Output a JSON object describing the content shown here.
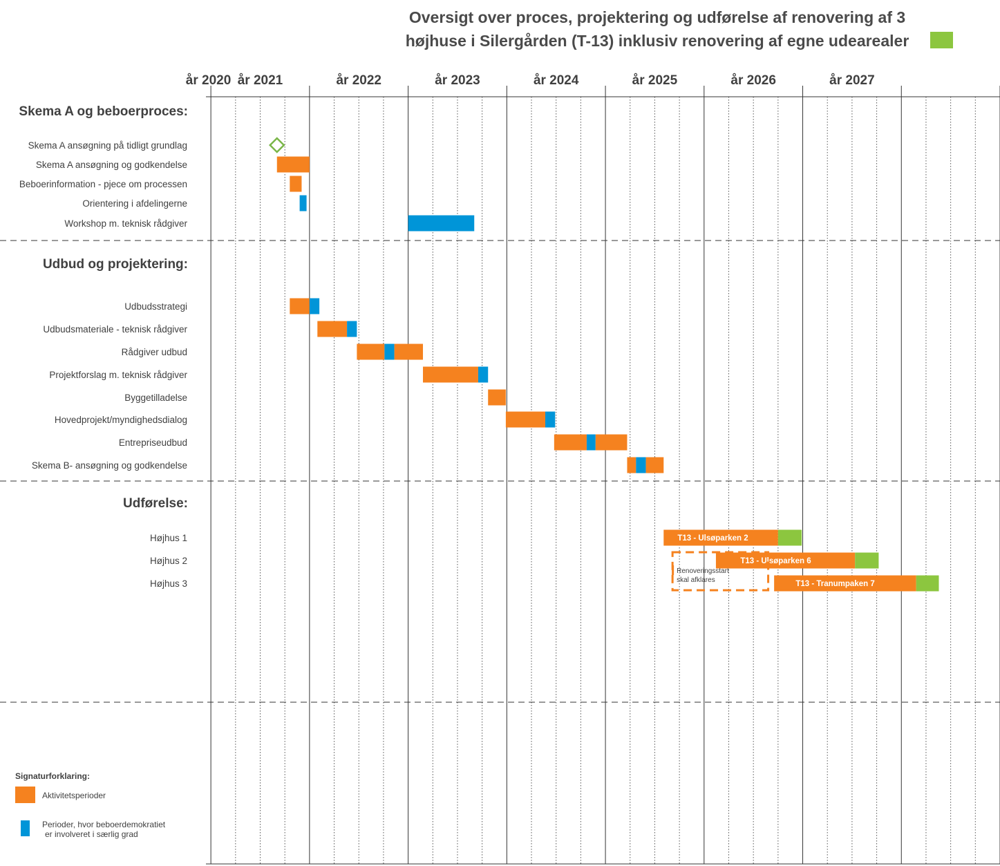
{
  "title_lines": [
    "Oversigt over proces, projektering og udførelse af renovering af 3",
    "højhuse i Silergården (T-13) inklusiv renovering af egne udearealer"
  ],
  "colors": {
    "activity": "#f5821f",
    "resident": "#0095d8",
    "outdoor": "#8cc63f",
    "milestone": "#7ab648"
  },
  "chart_data": {
    "type": "gantt",
    "x_range": [
      2019.7,
      2027.75
    ],
    "years": [
      "år 2020",
      "år 2021",
      "år 2022",
      "år 2023",
      "år 2024",
      "år 2025",
      "år 2026",
      "år 2027"
    ],
    "sections": [
      {
        "label": "Skema A  og beboerproces:",
        "rows": [
          {
            "label": "Skema A ansøgning på tidligt grundlag",
            "milestone": 2020.42,
            "segments": []
          },
          {
            "label": "Skema A ansøgning og godkendelse",
            "segments": [
              {
                "start": 2020.42,
                "end": 2020.75,
                "kind": "activity"
              }
            ]
          },
          {
            "label": "Beboerinformation - pjece om processen",
            "segments": [
              {
                "start": 2020.55,
                "end": 2020.67,
                "kind": "activity"
              }
            ]
          },
          {
            "label": "Orientering i afdelingerne",
            "segments": [
              {
                "start": 2020.65,
                "end": 2020.72,
                "kind": "resident"
              }
            ]
          },
          {
            "label": "Workshop m. teknisk rådgiver",
            "segments": [
              {
                "start": 2021.75,
                "end": 2022.42,
                "kind": "resident"
              }
            ]
          }
        ]
      },
      {
        "label": "Udbud og projektering:",
        "rows": [
          {
            "label": "Udbudsstrategi",
            "segments": [
              {
                "start": 2020.55,
                "end": 2020.75,
                "kind": "activity"
              },
              {
                "start": 2020.75,
                "end": 2020.85,
                "kind": "resident"
              }
            ]
          },
          {
            "label": "Udbudsmateriale - teknisk rådgiver",
            "segments": [
              {
                "start": 2020.83,
                "end": 2021.13,
                "kind": "activity"
              },
              {
                "start": 2021.13,
                "end": 2021.23,
                "kind": "resident"
              }
            ]
          },
          {
            "label": "Rådgiver udbud",
            "segments": [
              {
                "start": 2021.23,
                "end": 2021.51,
                "kind": "activity"
              },
              {
                "start": 2021.51,
                "end": 2021.61,
                "kind": "resident"
              },
              {
                "start": 2021.61,
                "end": 2021.9,
                "kind": "activity"
              }
            ]
          },
          {
            "label": "Projektforslag m. teknisk rådgiver",
            "segments": [
              {
                "start": 2021.9,
                "end": 2022.46,
                "kind": "activity"
              },
              {
                "start": 2022.46,
                "end": 2022.56,
                "kind": "resident"
              }
            ]
          },
          {
            "label": "Byggetilladelse",
            "segments": [
              {
                "start": 2022.56,
                "end": 2022.74,
                "kind": "activity"
              }
            ]
          },
          {
            "label": "Hovedprojekt/myndighedsdialog",
            "segments": [
              {
                "start": 2022.74,
                "end": 2023.14,
                "kind": "activity"
              },
              {
                "start": 2023.14,
                "end": 2023.24,
                "kind": "resident"
              }
            ]
          },
          {
            "label": "Entrepriseudbud",
            "segments": [
              {
                "start": 2023.23,
                "end": 2023.56,
                "kind": "activity"
              },
              {
                "start": 2023.56,
                "end": 2023.65,
                "kind": "resident"
              },
              {
                "start": 2023.65,
                "end": 2023.97,
                "kind": "activity"
              }
            ]
          },
          {
            "label": "Skema B- ansøgning og godkendelse",
            "segments": [
              {
                "start": 2023.97,
                "end": 2024.06,
                "kind": "activity"
              },
              {
                "start": 2024.06,
                "end": 2024.16,
                "kind": "resident"
              },
              {
                "start": 2024.16,
                "end": 2024.34,
                "kind": "activity"
              }
            ]
          }
        ]
      },
      {
        "label": "Udførelse:",
        "rows": [
          {
            "label": "Højhus 1",
            "segments": [
              {
                "start": 2024.34,
                "end": 2025.5,
                "kind": "activity",
                "label": "T13 - Ulsøparken 2"
              },
              {
                "start": 2025.5,
                "end": 2025.74,
                "kind": "outdoor"
              }
            ]
          },
          {
            "label": "Højhus 2",
            "segments": [
              {
                "start": 2024.87,
                "end": 2026.28,
                "kind": "activity",
                "label": "T13 - Ulsøparken 6"
              },
              {
                "start": 2026.28,
                "end": 2026.52,
                "kind": "outdoor"
              }
            ]
          },
          {
            "label": "Højhus 3",
            "segments": [
              {
                "start": 2025.46,
                "end": 2026.9,
                "kind": "activity",
                "label": "T13 - Tranumpaken 7"
              },
              {
                "start": 2026.9,
                "end": 2027.13,
                "kind": "outdoor"
              }
            ]
          }
        ]
      }
    ],
    "annotation": {
      "lines": [
        "Renoveringsstart",
        "skal afklares"
      ],
      "start": 2024.43,
      "end": 2025.4
    }
  },
  "legend": {
    "title": "Signaturforklaring:",
    "items": [
      {
        "kind": "activity",
        "lines": [
          "Aktivitetsperioder"
        ]
      },
      {
        "kind": "resident",
        "lines": [
          "Perioder, hvor beboerdemokratiet",
          "er involveret i særlig grad"
        ]
      }
    ]
  }
}
